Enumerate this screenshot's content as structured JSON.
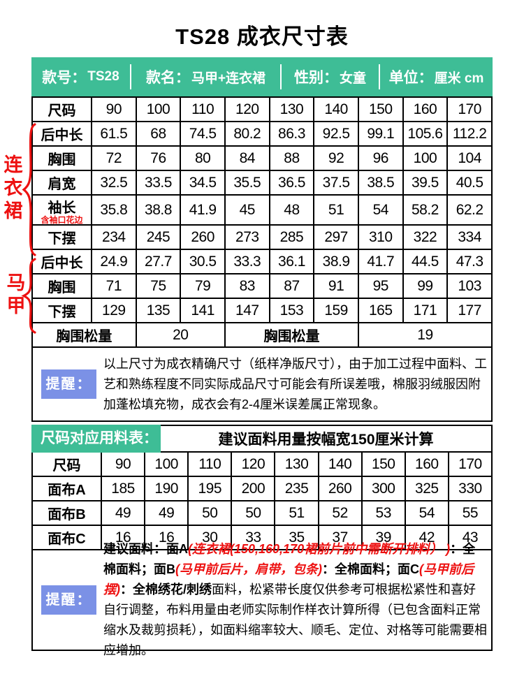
{
  "title": "TS28 成衣尺寸表",
  "colors": {
    "green": "#3ebd96",
    "blue": "#7b91e6",
    "red": "#ed1111"
  },
  "info_banner": {
    "items": [
      {
        "label": "款号：",
        "value": "TS28"
      },
      {
        "label": "款名：",
        "value": "马甲+连衣裙"
      },
      {
        "label": "性别：",
        "value": "女童"
      },
      {
        "label": "单位：",
        "value": "厘米 cm"
      }
    ]
  },
  "size_table": {
    "header_label": "尺码",
    "sizes": [
      "90",
      "100",
      "110",
      "120",
      "130",
      "140",
      "150",
      "160",
      "170"
    ],
    "groups": [
      {
        "name": "连衣裙",
        "rows": [
          {
            "label": "后中长",
            "values": [
              "61.5",
              "68",
              "74.5",
              "80.2",
              "86.3",
              "92.5",
              "99.1",
              "105.6",
              "112.2"
            ]
          },
          {
            "label": "胸围",
            "values": [
              "72",
              "76",
              "80",
              "84",
              "88",
              "92",
              "96",
              "100",
              "104"
            ]
          },
          {
            "label": "肩宽",
            "values": [
              "32.5",
              "33.5",
              "34.5",
              "35.5",
              "36.5",
              "37.5",
              "38.5",
              "39.5",
              "40.5"
            ]
          },
          {
            "label": "袖长",
            "sublabel": "含袖口花边",
            "values": [
              "35.8",
              "38.8",
              "41.9",
              "45",
              "48",
              "51",
              "54",
              "58.2",
              "62.2"
            ]
          },
          {
            "label": "下摆",
            "values": [
              "234",
              "245",
              "260",
              "273",
              "285",
              "297",
              "310",
              "322",
              "334"
            ]
          }
        ]
      },
      {
        "name": "马甲",
        "rows": [
          {
            "label": "后中长",
            "values": [
              "24.9",
              "27.7",
              "30.5",
              "33.3",
              "36.1",
              "38.9",
              "41.7",
              "44.5",
              "47.3"
            ]
          },
          {
            "label": "胸围",
            "values": [
              "71",
              "75",
              "79",
              "83",
              "87",
              "91",
              "95",
              "99",
              "103"
            ]
          },
          {
            "label": "下摆",
            "values": [
              "129",
              "135",
              "141",
              "147",
              "153",
              "159",
              "165",
              "171",
              "177"
            ]
          }
        ]
      }
    ],
    "ease_cells": [
      {
        "text": "胸围松量",
        "span": 2,
        "kind": "label"
      },
      {
        "text": "20",
        "span": 2,
        "kind": "value"
      },
      {
        "text": "胸围松量",
        "span": 3,
        "kind": "label"
      },
      {
        "text": "19",
        "span": 3,
        "kind": "value"
      }
    ]
  },
  "reminder1": {
    "label": "提醒：",
    "text": "以上尺寸为成衣精确尺寸（纸样净版尺寸），由于加工过程中面料、工艺和熟练程度不同实际成品尺寸可能会有所误差哦，棉服羽绒服因附加蓬松填充物，成衣会有2-4厘米误差属正常现象。"
  },
  "fabric_table": {
    "banner_label": "尺码对应用料表：",
    "banner_note": "建议面料用量按幅宽150厘米计算",
    "rows": [
      {
        "label": "尺码",
        "values": [
          "90",
          "100",
          "110",
          "120",
          "130",
          "140",
          "150",
          "160",
          "170"
        ]
      },
      {
        "label": "面布A",
        "values": [
          "185",
          "190",
          "195",
          "200",
          "235",
          "260",
          "300",
          "325",
          "330"
        ]
      },
      {
        "label": "面布B",
        "values": [
          "49",
          "49",
          "50",
          "50",
          "51",
          "52",
          "53",
          "54",
          "55"
        ]
      },
      {
        "label": "面布C",
        "values": [
          "16",
          "16",
          "30",
          "33",
          "35",
          "37",
          "39",
          "42",
          "43"
        ]
      }
    ]
  },
  "reminder2": {
    "label": "提醒：",
    "segments": [
      {
        "text": "建议面料：面A",
        "style": "bold"
      },
      {
        "text": "(连衣裙(150,160,170裙前片前中需断开排料） )",
        "style": "red"
      },
      {
        "text": "：全棉面料；面B",
        "style": "bold"
      },
      {
        "text": "(马甲前后片，肩带，包条)",
        "style": "red"
      },
      {
        "text": "：全棉面料；面C",
        "style": "bold"
      },
      {
        "text": "(马甲前后摆)",
        "style": "red"
      },
      {
        "text": "：全棉绣花/刺绣",
        "style": "bold"
      },
      {
        "text": "面料，松紧带长度仅供参考可根据松紧性和喜好自行调整，布料用量由老师实际制作样衣计算所得（已包含面料正常缩水及裁剪损耗），如面料缩率较大、顺毛、定位、对格等可能需要相应增加。",
        "style": "normal"
      }
    ]
  }
}
